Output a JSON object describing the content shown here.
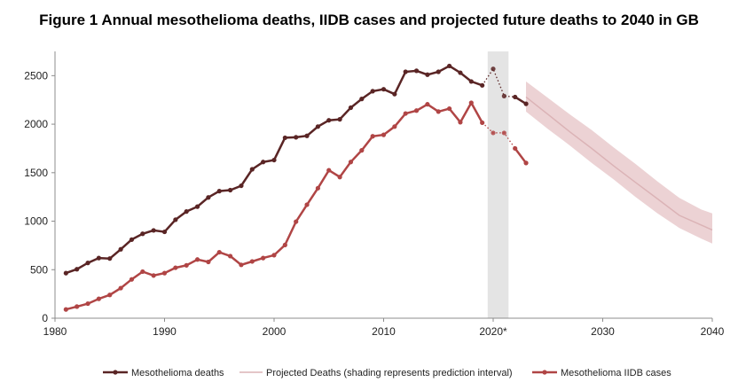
{
  "chart_data": {
    "type": "line",
    "title": "Figure 1 Annual mesothelioma deaths, IIDB cases and projected future deaths to 2040 in GB",
    "xlabel": "",
    "ylabel": "",
    "xlim": [
      1980,
      2040
    ],
    "ylim": [
      0,
      2750
    ],
    "x_ticks": [
      1980,
      1990,
      2000,
      2010,
      2020,
      2030,
      2040
    ],
    "x_tick_labels": [
      "1980",
      "1990",
      "2000",
      "2010",
      "2020*",
      "2030",
      "2040"
    ],
    "y_ticks": [
      0,
      500,
      1000,
      1500,
      2000,
      2500
    ],
    "y_tick_labels": [
      "0",
      "500",
      "1000",
      "1500",
      "2000",
      "2500"
    ],
    "highlight_band": [
      2019.5,
      2021.4
    ],
    "grid": false,
    "legend_position": "bottom",
    "colors": {
      "deaths": "#5a2525",
      "iidb": "#b04545",
      "projected_line": "#dbb3b6",
      "projected_band": "#ecd2d4",
      "highlight": "#e4e4e4",
      "axis": "#8c8c8c"
    },
    "series": [
      {
        "name": "Mesothelioma deaths",
        "x": [
          1981,
          1982,
          1983,
          1984,
          1985,
          1986,
          1987,
          1988,
          1989,
          1990,
          1991,
          1992,
          1993,
          1994,
          1995,
          1996,
          1997,
          1998,
          1999,
          2000,
          2001,
          2002,
          2003,
          2004,
          2005,
          2006,
          2007,
          2008,
          2009,
          2010,
          2011,
          2012,
          2013,
          2014,
          2015,
          2016,
          2017,
          2018,
          2019
        ],
        "y": [
          465,
          505,
          570,
          620,
          615,
          710,
          810,
          870,
          905,
          890,
          1015,
          1100,
          1150,
          1245,
          1310,
          1320,
          1365,
          1535,
          1610,
          1630,
          1860,
          1865,
          1880,
          1975,
          2040,
          2050,
          2170,
          2260,
          2340,
          2360,
          2310,
          2540,
          2550,
          2510,
          2540,
          2600,
          2530,
          2440,
          2400
        ],
        "dotted_x": [
          2019,
          2020,
          2021,
          2022
        ],
        "dotted_y": [
          2400,
          2570,
          2290,
          2280
        ],
        "after_x": [
          2022,
          2023
        ],
        "after_y": [
          2280,
          2210
        ]
      },
      {
        "name": "Projected Deaths (shading represents prediction interval)",
        "x": [
          2023,
          2025,
          2027,
          2029,
          2031,
          2033,
          2035,
          2037,
          2039,
          2040
        ],
        "y": [
          2280,
          2100,
          1920,
          1750,
          1570,
          1400,
          1230,
          1060,
          960,
          910
        ],
        "lower": [
          2130,
          1950,
          1780,
          1600,
          1430,
          1250,
          1080,
          930,
          820,
          770
        ],
        "upper": [
          2440,
          2270,
          2100,
          1940,
          1760,
          1590,
          1410,
          1240,
          1120,
          1080
        ]
      },
      {
        "name": "Mesothelioma IIDB cases",
        "x": [
          1981,
          1982,
          1983,
          1984,
          1985,
          1986,
          1987,
          1988,
          1989,
          1990,
          1991,
          1992,
          1993,
          1994,
          1995,
          1996,
          1997,
          1998,
          1999,
          2000,
          2001,
          2002,
          2003,
          2004,
          2005,
          2006,
          2007,
          2008,
          2009,
          2010,
          2011,
          2012,
          2013,
          2014,
          2015,
          2016,
          2017,
          2018,
          2019
        ],
        "y": [
          90,
          120,
          150,
          200,
          240,
          310,
          400,
          480,
          440,
          465,
          520,
          545,
          605,
          580,
          680,
          640,
          550,
          585,
          620,
          650,
          755,
          995,
          1170,
          1340,
          1525,
          1455,
          1610,
          1730,
          1875,
          1890,
          1975,
          2110,
          2140,
          2205,
          2130,
          2160,
          2020,
          2220,
          2015
        ],
        "dotted_x": [
          2019,
          2020,
          2021,
          2022
        ],
        "dotted_y": [
          2015,
          1910,
          1910,
          1750
        ],
        "after_x": [
          2022,
          2023
        ],
        "after_y": [
          1750,
          1600
        ]
      }
    ]
  }
}
